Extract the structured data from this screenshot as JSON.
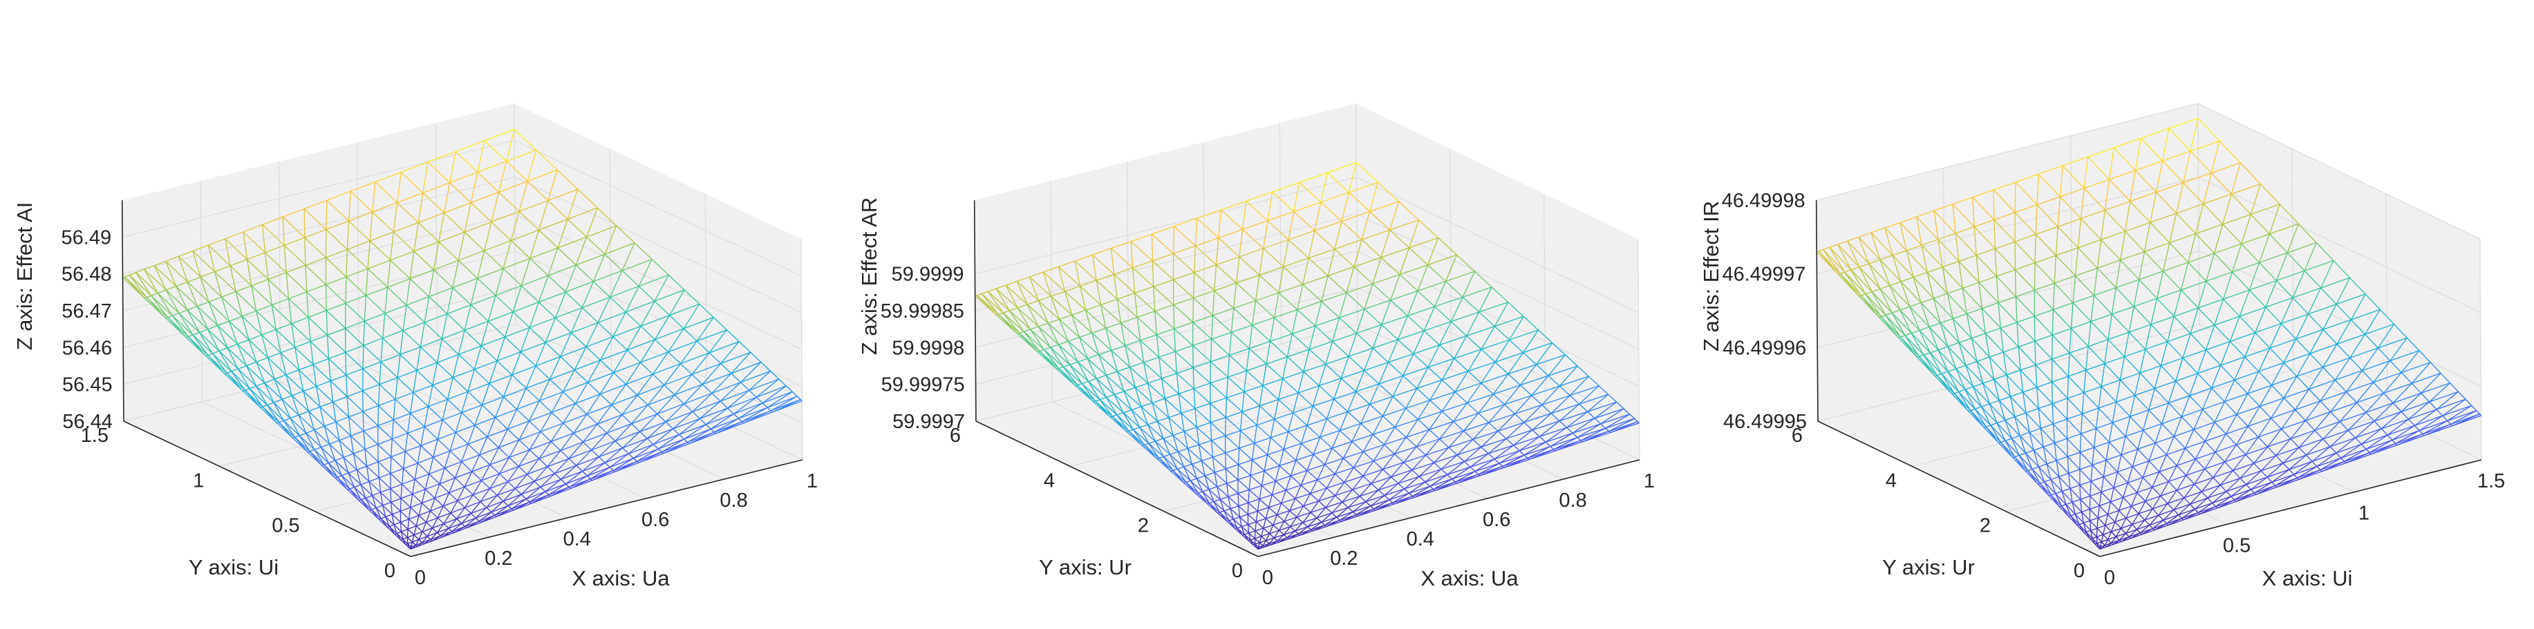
{
  "chart_data": [
    {
      "type": "surface",
      "xlabel": "X axis: Ua",
      "ylabel": "Y axis: Ui",
      "zlabel": "Z axis: Effect AI",
      "xlim": [
        0,
        1
      ],
      "ylim": [
        0,
        1.5
      ],
      "zlim": [
        56.44,
        56.5
      ],
      "x_ticks": [
        "0",
        "0.2",
        "0.4",
        "0.6",
        "0.8",
        "1"
      ],
      "y_ticks": [
        "0",
        "0.5",
        "1",
        "1.5"
      ],
      "z_ticks": [
        "56.44",
        "56.45",
        "56.46",
        "56.47",
        "56.48",
        "56.49"
      ],
      "surface_corners": [
        {
          "x": 0,
          "y": 0,
          "z": 56.442
        },
        {
          "x": 1,
          "y": 0,
          "z": 56.456
        },
        {
          "x": 0,
          "y": 1.5,
          "z": 56.479
        },
        {
          "x": 1,
          "y": 1.5,
          "z": 56.493
        }
      ],
      "grid": true,
      "colormap": "parula"
    },
    {
      "type": "surface",
      "xlabel": "X axis: Ua",
      "ylabel": "Y axis: Ur",
      "zlabel": "Z axis: Effect AR",
      "xlim": [
        0,
        1
      ],
      "ylim": [
        0,
        6
      ],
      "zlim": [
        59.9997,
        60.0
      ],
      "x_ticks": [
        "0",
        "0.2",
        "0.4",
        "0.6",
        "0.8",
        "1"
      ],
      "y_ticks": [
        "0",
        "2",
        "4",
        "6"
      ],
      "z_ticks": [
        "59.9997",
        "59.99975",
        "59.9998",
        "59.99985",
        "59.9999"
      ],
      "surface_corners": [
        {
          "x": 0,
          "y": 0,
          "z": 59.99971
        },
        {
          "x": 1,
          "y": 0,
          "z": 59.99975
        },
        {
          "x": 0,
          "y": 6,
          "z": 59.99987
        },
        {
          "x": 1,
          "y": 6,
          "z": 59.99992
        }
      ],
      "grid": true,
      "colormap": "parula"
    },
    {
      "type": "surface",
      "xlabel": "X axis: Ui",
      "ylabel": "Y axis: Ur",
      "zlabel": "Z axis: Effect IR",
      "xlim": [
        0,
        1.5
      ],
      "ylim": [
        0,
        6
      ],
      "zlim": [
        46.49995,
        46.49998
      ],
      "x_ticks": [
        "0",
        "0.5",
        "1",
        "1.5"
      ],
      "y_ticks": [
        "0",
        "2",
        "4",
        "6"
      ],
      "z_ticks": [
        "46.49995",
        "46.49996",
        "46.49997",
        "46.49998"
      ],
      "surface_corners": [
        {
          "x": 0,
          "y": 0,
          "z": 46.499951
        },
        {
          "x": 1.5,
          "y": 0,
          "z": 46.499956
        },
        {
          "x": 0,
          "y": 6,
          "z": 46.499973
        },
        {
          "x": 1.5,
          "y": 6,
          "z": 46.499978
        }
      ],
      "grid": true,
      "colormap": "parula"
    }
  ]
}
